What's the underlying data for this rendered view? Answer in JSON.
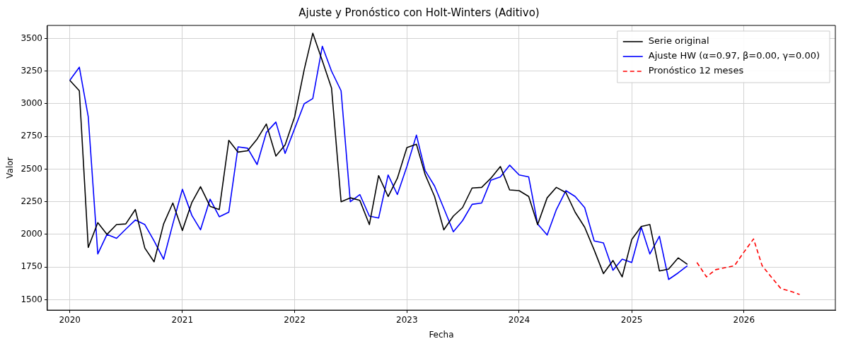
{
  "chart_data": {
    "type": "line",
    "title": "Ajuste y Pronóstico con Holt-Winters (Aditivo)",
    "xlabel": "Fecha",
    "ylabel": "Valor",
    "legend": "top right",
    "grid": true,
    "line_style": "solid",
    "marker": "none",
    "xlim": [
      "2019-10-20",
      "2026-10-25"
    ],
    "xticks": [
      "2020",
      "2021",
      "2022",
      "2023",
      "2024",
      "2025",
      "2026"
    ],
    "ylim": [
      1420,
      3600
    ],
    "yticks": [
      1500,
      1750,
      2000,
      2250,
      2500,
      2750,
      3000,
      3250,
      3500
    ],
    "series": [
      {
        "name": "Serie original",
        "color": "#000000",
        "x": [
          "2020-01",
          "2020-02",
          "2020-03",
          "2020-04",
          "2020-05",
          "2020-06",
          "2020-07",
          "2020-08",
          "2020-09",
          "2020-10",
          "2020-11",
          "2020-12",
          "2021-01",
          "2021-02",
          "2021-03",
          "2021-04",
          "2021-05",
          "2021-06",
          "2021-07",
          "2021-08",
          "2021-09",
          "2021-10",
          "2021-11",
          "2021-12",
          "2022-01",
          "2022-02",
          "2022-03",
          "2022-04",
          "2022-05",
          "2022-06",
          "2022-07",
          "2022-08",
          "2022-09",
          "2022-10",
          "2022-11",
          "2022-12",
          "2023-01",
          "2023-02",
          "2023-03",
          "2023-04",
          "2023-05",
          "2023-06",
          "2023-07",
          "2023-08",
          "2023-09",
          "2023-10",
          "2023-11",
          "2023-12",
          "2024-01",
          "2024-02",
          "2024-03",
          "2024-04",
          "2024-05",
          "2024-06",
          "2024-07",
          "2024-08",
          "2024-09",
          "2024-10",
          "2024-11",
          "2024-12",
          "2025-01",
          "2025-02",
          "2025-03",
          "2025-04",
          "2025-05",
          "2025-06",
          "2025-07"
        ],
        "values": [
          3180,
          3100,
          1900,
          2090,
          2000,
          2075,
          2080,
          2190,
          1895,
          1790,
          2080,
          2240,
          2030,
          2245,
          2365,
          2215,
          2190,
          2720,
          2630,
          2640,
          2730,
          2845,
          2600,
          2685,
          2900,
          3260,
          3540,
          3330,
          3120,
          2250,
          2280,
          2260,
          2075,
          2450,
          2290,
          2430,
          2665,
          2690,
          2460,
          2290,
          2035,
          2140,
          2205,
          2355,
          2360,
          2430,
          2520,
          2340,
          2335,
          2290,
          2075,
          2280,
          2360,
          2320,
          2170,
          2055,
          1880,
          1700,
          1800,
          1675,
          1960,
          2060,
          2075,
          1720,
          1735,
          1820,
          1770
        ]
      },
      {
        "name": "Ajuste HW (α=0.97, β=0.00, γ=0.00)",
        "color": "#0000ff",
        "x": [
          "2020-01",
          "2020-02",
          "2020-03",
          "2020-04",
          "2020-05",
          "2020-06",
          "2020-07",
          "2020-08",
          "2020-09",
          "2020-10",
          "2020-11",
          "2020-12",
          "2021-01",
          "2021-02",
          "2021-03",
          "2021-04",
          "2021-05",
          "2021-06",
          "2021-07",
          "2021-08",
          "2021-09",
          "2021-10",
          "2021-11",
          "2021-12",
          "2022-01",
          "2022-02",
          "2022-03",
          "2022-04",
          "2022-05",
          "2022-06",
          "2022-07",
          "2022-08",
          "2022-09",
          "2022-10",
          "2022-11",
          "2022-12",
          "2023-01",
          "2023-02",
          "2023-03",
          "2023-04",
          "2023-05",
          "2023-06",
          "2023-07",
          "2023-08",
          "2023-09",
          "2023-10",
          "2023-11",
          "2023-12",
          "2024-01",
          "2024-02",
          "2024-03",
          "2024-04",
          "2024-05",
          "2024-06",
          "2024-07",
          "2024-08",
          "2024-09",
          "2024-10",
          "2024-11",
          "2024-12",
          "2025-01",
          "2025-02",
          "2025-03",
          "2025-04",
          "2025-05",
          "2025-06",
          "2025-07"
        ],
        "values": [
          3180,
          3280,
          2900,
          1850,
          2000,
          1970,
          2040,
          2110,
          2075,
          1950,
          1810,
          2080,
          2345,
          2145,
          2035,
          2270,
          2135,
          2170,
          2670,
          2660,
          2535,
          2780,
          2860,
          2620,
          2810,
          3000,
          3040,
          3440,
          3250,
          3100,
          2250,
          2305,
          2140,
          2125,
          2455,
          2305,
          2520,
          2760,
          2490,
          2370,
          2200,
          2020,
          2105,
          2230,
          2240,
          2415,
          2440,
          2530,
          2455,
          2440,
          2080,
          1995,
          2190,
          2335,
          2290,
          2205,
          1950,
          1935,
          1725,
          1810,
          1785,
          2055,
          1850,
          1985,
          1655,
          1705,
          1760
        ]
      },
      {
        "name": "Pronóstico 12 meses",
        "color": "#ff0000",
        "line_style": "dashed",
        "x": [
          "2025-08",
          "2025-09",
          "2025-10",
          "2025-11",
          "2025-12",
          "2026-01",
          "2026-02",
          "2026-03",
          "2026-04",
          "2026-05",
          "2026-06",
          "2026-07"
        ],
        "values": [
          1785,
          1675,
          1730,
          1745,
          1760,
          1865,
          1965,
          1760,
          1670,
          1585,
          1565,
          1540
        ]
      }
    ]
  }
}
